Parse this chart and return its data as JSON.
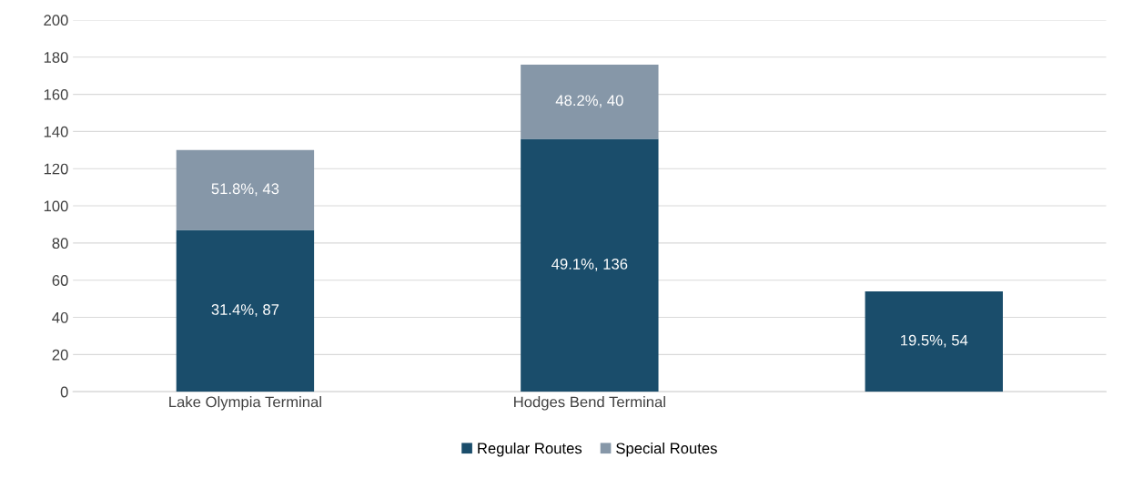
{
  "chart_data": {
    "type": "bar",
    "stacked": true,
    "categories": [
      "Lake Olympia Terminal",
      "Hodges Bend Terminal",
      null
    ],
    "series": [
      {
        "name": "Regular Routes",
        "color": "#1a4d6b",
        "values": [
          87,
          136,
          54
        ],
        "value_labels": [
          "31.4%, 87",
          "49.1%, 136",
          "19.5%, 54"
        ]
      },
      {
        "name": "Special Routes",
        "color": "#8697a8",
        "values": [
          43,
          40,
          null
        ],
        "value_labels": [
          "51.8%, 43",
          "48.2%, 40",
          null
        ]
      }
    ],
    "ylim": [
      0,
      200
    ],
    "yticks": [
      0,
      20,
      40,
      60,
      80,
      100,
      120,
      140,
      160,
      180,
      200
    ],
    "grid": "y",
    "legend": "bottom"
  }
}
